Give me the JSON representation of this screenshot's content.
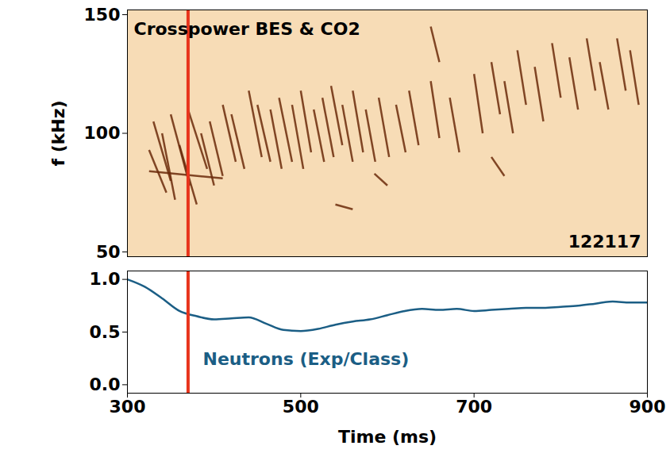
{
  "chart_data": [
    {
      "type": "spectrogram",
      "title": "Crosspower BES & CO2",
      "annotation": "122117",
      "ylabel": "f (kHz)",
      "xlim": [
        300,
        900
      ],
      "ylim": [
        48,
        152
      ],
      "yticks": [
        50,
        100,
        150
      ],
      "tick_labels": "y",
      "color": "#6b2a0a",
      "vline": {
        "x": 370,
        "color": "#e8341c"
      },
      "segments": [
        {
          "x": [
            325,
            410
          ],
          "y": [
            84,
            81
          ]
        },
        {
          "x": [
            325,
            345
          ],
          "y": [
            93,
            75
          ]
        },
        {
          "x": [
            330,
            350
          ],
          "y": [
            105,
            80
          ]
        },
        {
          "x": [
            340,
            355
          ],
          "y": [
            100,
            72
          ]
        },
        {
          "x": [
            350,
            372
          ],
          "y": [
            108,
            78
          ]
        },
        {
          "x": [
            360,
            380
          ],
          "y": [
            95,
            70
          ]
        },
        {
          "x": [
            370,
            392
          ],
          "y": [
            110,
            85
          ]
        },
        {
          "x": [
            385,
            400
          ],
          "y": [
            100,
            78
          ]
        },
        {
          "x": [
            395,
            410
          ],
          "y": [
            105,
            82
          ]
        },
        {
          "x": [
            410,
            425
          ],
          "y": [
            112,
            88
          ]
        },
        {
          "x": [
            420,
            435
          ],
          "y": [
            108,
            85
          ]
        },
        {
          "x": [
            440,
            455
          ],
          "y": [
            118,
            90
          ]
        },
        {
          "x": [
            450,
            465
          ],
          "y": [
            112,
            88
          ]
        },
        {
          "x": [
            465,
            478
          ],
          "y": [
            110,
            85
          ]
        },
        {
          "x": [
            475,
            490
          ],
          "y": [
            115,
            88
          ]
        },
        {
          "x": [
            490,
            503
          ],
          "y": [
            112,
            85
          ]
        },
        {
          "x": [
            500,
            512
          ],
          "y": [
            118,
            92
          ]
        },
        {
          "x": [
            515,
            527
          ],
          "y": [
            110,
            88
          ]
        },
        {
          "x": [
            525,
            538
          ],
          "y": [
            115,
            90
          ]
        },
        {
          "x": [
            535,
            548
          ],
          "y": [
            120,
            95
          ]
        },
        {
          "x": [
            548,
            560
          ],
          "y": [
            112,
            88
          ]
        },
        {
          "x": [
            560,
            572
          ],
          "y": [
            118,
            92
          ]
        },
        {
          "x": [
            575,
            586
          ],
          "y": [
            110,
            88
          ]
        },
        {
          "x": [
            590,
            602
          ],
          "y": [
            115,
            90
          ]
        },
        {
          "x": [
            610,
            621
          ],
          "y": [
            112,
            92
          ]
        },
        {
          "x": [
            625,
            636
          ],
          "y": [
            118,
            95
          ]
        },
        {
          "x": [
            650,
            660
          ],
          "y": [
            122,
            98
          ]
        },
        {
          "x": [
            672,
            683
          ],
          "y": [
            115,
            92
          ]
        },
        {
          "x": [
            700,
            710
          ],
          "y": [
            125,
            100
          ]
        },
        {
          "x": [
            720,
            730
          ],
          "y": [
            130,
            108
          ]
        },
        {
          "x": [
            735,
            745
          ],
          "y": [
            122,
            100
          ]
        },
        {
          "x": [
            750,
            760
          ],
          "y": [
            135,
            112
          ]
        },
        {
          "x": [
            770,
            780
          ],
          "y": [
            128,
            105
          ]
        },
        {
          "x": [
            790,
            800
          ],
          "y": [
            138,
            115
          ]
        },
        {
          "x": [
            810,
            820
          ],
          "y": [
            132,
            110
          ]
        },
        {
          "x": [
            830,
            840
          ],
          "y": [
            140,
            118
          ]
        },
        {
          "x": [
            845,
            855
          ],
          "y": [
            130,
            110
          ]
        },
        {
          "x": [
            865,
            875
          ],
          "y": [
            140,
            118
          ]
        },
        {
          "x": [
            880,
            890
          ],
          "y": [
            135,
            112
          ]
        },
        {
          "x": [
            540,
            560
          ],
          "y": [
            70,
            68
          ]
        },
        {
          "x": [
            585,
            600
          ],
          "y": [
            83,
            78
          ]
        },
        {
          "x": [
            720,
            735
          ],
          "y": [
            90,
            82
          ]
        },
        {
          "x": [
            650,
            660
          ],
          "y": [
            145,
            130
          ]
        }
      ]
    },
    {
      "type": "line",
      "annotation": "Neutrons (Exp/Class)",
      "xlabel": "Time (ms)",
      "xlim": [
        300,
        900
      ],
      "xticks": [
        300,
        500,
        700,
        900
      ],
      "ylim": [
        -0.08,
        1.08
      ],
      "yticks": [
        {
          "value": 0,
          "label": "0.0"
        },
        {
          "value": 0.5,
          "label": "0.5"
        },
        {
          "value": 1,
          "label": "1.0"
        }
      ],
      "color": "#1b5e85",
      "vline": {
        "x": 370,
        "color": "#e8341c"
      },
      "x": [
        300,
        320,
        340,
        360,
        380,
        400,
        420,
        440,
        460,
        480,
        500,
        520,
        540,
        560,
        580,
        600,
        620,
        640,
        660,
        680,
        700,
        720,
        740,
        760,
        780,
        800,
        820,
        840,
        860,
        880,
        900
      ],
      "values": [
        1.0,
        0.93,
        0.82,
        0.7,
        0.65,
        0.62,
        0.63,
        0.64,
        0.58,
        0.52,
        0.51,
        0.53,
        0.57,
        0.6,
        0.62,
        0.66,
        0.7,
        0.72,
        0.71,
        0.72,
        0.7,
        0.71,
        0.72,
        0.73,
        0.73,
        0.74,
        0.75,
        0.77,
        0.79,
        0.78,
        0.78
      ]
    }
  ]
}
